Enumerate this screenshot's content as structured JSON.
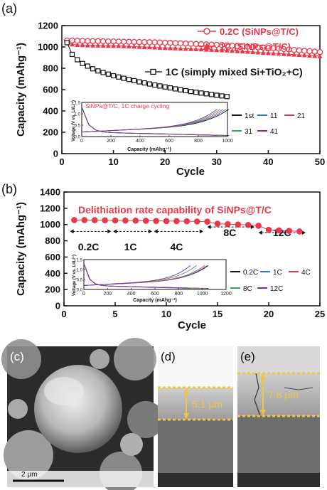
{
  "chart_data": [
    {
      "panel": "(a)",
      "type": "scatter",
      "xlabel": "Cycle",
      "ylabel": "Capacity (mAhg⁻¹)",
      "xlim": [
        0,
        50
      ],
      "ylim": [
        0,
        1200
      ],
      "xticks": [
        "0",
        "10",
        "20",
        "30",
        "40",
        "50"
      ],
      "yticks": [
        "0",
        "200",
        "400",
        "600",
        "800",
        "1000",
        "1200"
      ],
      "series": [
        {
          "name": "0.2C (SiNPs@T/C)",
          "color": "#e8394a",
          "marker": "open-circle",
          "x": [
            1,
            2,
            3,
            4,
            5,
            6,
            7,
            8,
            9,
            10,
            11,
            12,
            13,
            14,
            15,
            16,
            17,
            18,
            19,
            20,
            21,
            22,
            23,
            24,
            25,
            26,
            27,
            28,
            29,
            30,
            31,
            32,
            33,
            34,
            35,
            36,
            37,
            38,
            39,
            40,
            41,
            42,
            43,
            44,
            45,
            46,
            47,
            48,
            49,
            50
          ],
          "y": [
            1060,
            1060,
            1058,
            1057,
            1056,
            1055,
            1054,
            1053,
            1052,
            1051,
            1050,
            1049,
            1048,
            1047,
            1046,
            1045,
            1044,
            1043,
            1042,
            1040,
            1038,
            1036,
            1034,
            1032,
            1030,
            1028,
            1026,
            1024,
            1022,
            1020,
            1018,
            1015,
            1012,
            1009,
            1006,
            1003,
            1000,
            997,
            994,
            991,
            988,
            984,
            980,
            976,
            972,
            968,
            964,
            960,
            956,
            952
          ]
        },
        {
          "name": "1C (SiNPs@T/C)",
          "color": "#e8394a",
          "marker": "filled-triangle",
          "x": [
            1,
            2,
            3,
            4,
            5,
            6,
            7,
            8,
            9,
            10,
            11,
            12,
            13,
            14,
            15,
            16,
            17,
            18,
            19,
            20,
            21,
            22,
            23,
            24,
            25,
            26,
            27,
            28,
            29,
            30,
            31,
            32,
            33,
            34,
            35,
            36,
            37,
            38,
            39,
            40,
            41,
            42,
            43,
            44,
            45,
            46,
            47,
            48,
            49,
            50
          ],
          "y": [
            1040,
            1025,
            1020,
            1018,
            1016,
            1015,
            1014,
            1013,
            1012,
            1011,
            1010,
            1008,
            1006,
            1004,
            1002,
            1000,
            998,
            996,
            994,
            992,
            990,
            988,
            986,
            984,
            982,
            980,
            978,
            976,
            974,
            972,
            970,
            968,
            965,
            962,
            959,
            956,
            953,
            950,
            947,
            944,
            941,
            938,
            935,
            932,
            929,
            926,
            923,
            920,
            917,
            914
          ]
        },
        {
          "name": "1C (simply mixed Si+TiO₂+C)",
          "color": "#111111",
          "marker": "open-square",
          "x": [
            1,
            2,
            3,
            4,
            5,
            6,
            7,
            8,
            9,
            10,
            11,
            12,
            13,
            14,
            15,
            16,
            17,
            18,
            19,
            20,
            21,
            22,
            23,
            24,
            25,
            26,
            27,
            28,
            29,
            30,
            31,
            32
          ],
          "y": [
            1040,
            930,
            880,
            845,
            820,
            795,
            775,
            760,
            745,
            730,
            718,
            706,
            695,
            684,
            673,
            663,
            653,
            643,
            634,
            625,
            616,
            607,
            598,
            590,
            582,
            575,
            568,
            561,
            554,
            547,
            541,
            535
          ]
        }
      ],
      "legend": "top-right",
      "inset": {
        "title": "SiNPs@T/C, 1C charge cycling",
        "xlabel": "Capacity (mAhg⁻¹)",
        "ylabel": "Voltage (V vs. Li/Li⁺)",
        "xticks": [
          "0",
          "200",
          "400",
          "600",
          "800",
          "1000"
        ],
        "yticks": [
          "0.0",
          "0.5",
          "1.0",
          "1.5"
        ],
        "legend": [
          {
            "label": "1st",
            "color": "#111111"
          },
          {
            "label": "11",
            "color": "#2c7bd6"
          },
          {
            "label": "21",
            "color": "#e8394a"
          },
          {
            "label": "31",
            "color": "#2fae4e"
          },
          {
            "label": "41",
            "color": "#7b2fb0"
          }
        ]
      }
    },
    {
      "panel": "(b)",
      "type": "scatter",
      "title": "Delithiation rate capability of SiNPs@T/C",
      "xlabel": "Cycle",
      "ylabel": "Capacity (mAhg⁻¹)",
      "xlim": [
        0,
        25
      ],
      "ylim": [
        0,
        1400
      ],
      "xticks": [
        "0",
        "5",
        "10",
        "15",
        "20",
        "25"
      ],
      "yticks": [
        "0",
        "200",
        "400",
        "600",
        "800",
        "1000",
        "1200",
        "1400"
      ],
      "series": [
        {
          "name": "SiNPs@T/C",
          "color": "#e8394a",
          "marker": "filled-circle",
          "x": [
            1,
            2,
            3,
            4,
            5,
            6,
            7,
            8,
            9,
            10,
            11,
            12,
            13,
            14,
            15,
            16,
            17,
            18,
            19,
            20,
            21,
            22,
            23
          ],
          "y": [
            1055,
            1055,
            1054,
            1052,
            1050,
            1049,
            1048,
            1046,
            1044,
            1043,
            1042,
            1040,
            1038,
            1035,
            1010,
            1005,
            1000,
            995,
            985,
            935,
            928,
            922,
            915
          ]
        }
      ],
      "rate_labels": [
        "0.2C",
        "1C",
        "4C",
        "8C",
        "12C"
      ],
      "inset": {
        "xlabel": "Capacity (mAhg⁻¹)",
        "ylabel": "Voltage (V vs. Li/Li⁺)",
        "xticks": [
          "0",
          "200",
          "400",
          "600",
          "800",
          "1000",
          "1200"
        ],
        "yticks": [
          "0.0",
          "0.5",
          "1.0",
          "1.5"
        ],
        "legend": [
          {
            "label": "0.2C",
            "color": "#111111"
          },
          {
            "label": "1C",
            "color": "#2c7bd6"
          },
          {
            "label": "4C",
            "color": "#e8394a"
          },
          {
            "label": "8C",
            "color": "#2fae4e"
          },
          {
            "label": "12C",
            "color": "#7b2fb0"
          }
        ]
      }
    }
  ],
  "panels": {
    "a": "(a)",
    "b": "(b)",
    "c": "(c)",
    "d": "(d)",
    "e": "(e)"
  },
  "sem": {
    "scale_bar": "2 µm",
    "thickness_d": "5.1 µm",
    "thickness_e": "7.8 µm",
    "marker_color": "#f3c53c"
  }
}
